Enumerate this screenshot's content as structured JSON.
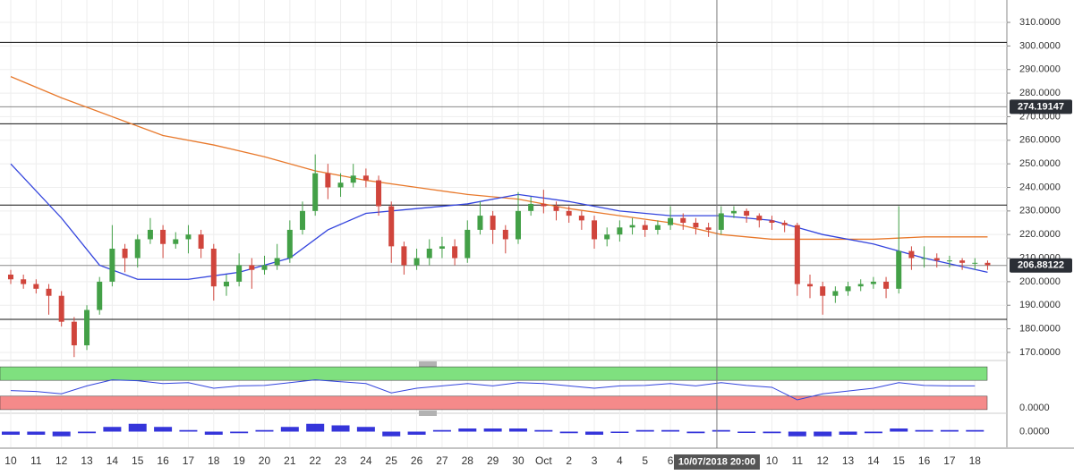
{
  "chart_data": {
    "type": "candlestick",
    "x": [
      0,
      0.5,
      1,
      1.5,
      2,
      2.5,
      3,
      3.5,
      4,
      4.5,
      5,
      5.5,
      6,
      6.5,
      7,
      7.5,
      8,
      8.5,
      9,
      9.5,
      10,
      10.5,
      11,
      11.5,
      12,
      12.5,
      13,
      13.5,
      14,
      14.5,
      15,
      15.5,
      16,
      16.5,
      17,
      17.5,
      18,
      18.5,
      19,
      19.5,
      20,
      20.5,
      21,
      21.5,
      22,
      22.5,
      23,
      23.5,
      24,
      24.5,
      25,
      25.5,
      26,
      26.5,
      27,
      27.5,
      28,
      28.5,
      29,
      29.5,
      30,
      30.5,
      31,
      31.5,
      32,
      32.5,
      33,
      33.5,
      34,
      34.5,
      35,
      35.5,
      36,
      36.5,
      37,
      37.5,
      38,
      38.5
    ],
    "open": [
      203,
      201,
      199,
      197,
      194,
      183,
      173,
      188,
      200,
      214,
      210,
      218,
      222,
      216,
      218,
      220,
      214,
      198,
      200,
      207,
      205,
      207,
      210,
      222,
      230,
      246,
      240,
      242,
      245,
      243,
      232,
      215,
      207,
      210,
      214,
      215,
      210,
      222,
      228,
      222,
      218,
      230,
      233,
      232,
      230,
      228,
      226,
      218,
      220,
      223,
      224,
      222,
      224,
      227,
      225,
      223,
      222,
      229,
      230,
      228,
      226,
      225,
      224,
      199,
      198,
      194,
      196,
      198,
      199,
      200,
      197,
      213,
      210,
      210,
      209,
      209,
      208,
      208
    ],
    "high": [
      205,
      203,
      201,
      199,
      196,
      185,
      190,
      202,
      224,
      216,
      220,
      227,
      224,
      221,
      224,
      222,
      216,
      203,
      212,
      210,
      211,
      216,
      226,
      234,
      254,
      250,
      246,
      250,
      248,
      245,
      234,
      217,
      214,
      218,
      219,
      218,
      226,
      234,
      230,
      224,
      238,
      236,
      239,
      234,
      232,
      230,
      228,
      223,
      226,
      227,
      226,
      226,
      232,
      229,
      227,
      225,
      232,
      232,
      231,
      229,
      228,
      226,
      225,
      203,
      200,
      198,
      200,
      201,
      202,
      202,
      232,
      215,
      215,
      212,
      211,
      210,
      210,
      209
    ],
    "low": [
      199,
      197,
      195,
      186,
      181,
      168,
      171,
      186,
      198,
      204,
      206,
      216,
      210,
      214,
      212,
      210,
      192,
      194,
      198,
      197,
      203,
      205,
      208,
      220,
      228,
      235,
      236,
      240,
      240,
      228,
      208,
      203,
      205,
      207,
      210,
      207,
      208,
      220,
      216,
      212,
      216,
      228,
      229,
      226,
      225,
      222,
      214,
      215,
      217,
      220,
      219,
      220,
      222,
      222,
      220,
      219,
      220,
      227,
      225,
      223,
      222,
      221,
      194,
      193,
      186,
      191,
      194,
      196,
      197,
      193,
      195,
      205,
      206,
      206,
      206,
      205,
      205,
      205
    ],
    "close": [
      201,
      199,
      197,
      194,
      183,
      173,
      188,
      200,
      214,
      210,
      218,
      222,
      216,
      218,
      220,
      214,
      198,
      200,
      207,
      205,
      207,
      210,
      222,
      230,
      246,
      240,
      242,
      245,
      243,
      232,
      215,
      207,
      210,
      214,
      215,
      210,
      222,
      228,
      222,
      218,
      230,
      233,
      232,
      230,
      228,
      226,
      218,
      220,
      223,
      224,
      222,
      224,
      227,
      225,
      223,
      222,
      229,
      230,
      228,
      226,
      225,
      224,
      199,
      198,
      194,
      196,
      198,
      199,
      200,
      197,
      213,
      210,
      210,
      209,
      209,
      208,
      208,
      207
    ],
    "up_color": "#43a047",
    "down_color": "#d0453c",
    "series": [
      {
        "color": "#e8792c",
        "x": [
          0,
          2,
          4,
          6,
          8,
          10,
          12,
          14,
          16,
          18,
          20,
          22,
          24,
          26,
          28,
          30,
          32,
          34,
          36,
          38.5
        ],
        "values": [
          287,
          278,
          270,
          262,
          258,
          253,
          247,
          243,
          240,
          237,
          235,
          231,
          228,
          225,
          220,
          218,
          218,
          218,
          219,
          219
        ]
      },
      {
        "color": "#3344dd",
        "x": [
          0,
          2,
          3.5,
          5,
          7,
          9,
          11,
          12.5,
          14,
          16,
          18,
          20,
          22,
          24,
          26,
          28,
          30,
          31,
          32,
          34,
          36,
          38.5
        ],
        "values": [
          250,
          227,
          207,
          201,
          201,
          204,
          210,
          222,
          229,
          231,
          233,
          237,
          234,
          230,
          228,
          228,
          226,
          223,
          220,
          216,
          210,
          204
        ]
      }
    ],
    "levels": [
      301.5,
      {
        "value": 274.19147,
        "label": "274.19147"
      },
      267,
      232.5,
      {
        "value": 206.88122,
        "label": "206.88122"
      },
      184
    ],
    "xlim": [
      -0.423,
      39.26
    ],
    "ylim": [
      167.7,
      319.5
    ],
    "yticks": [
      {
        "value": 170,
        "label": "170.0000"
      },
      {
        "value": 180,
        "label": "180.0000"
      },
      {
        "value": 190,
        "label": "190.0000"
      },
      {
        "value": 200,
        "label": "200.0000"
      },
      {
        "value": 210,
        "label": "210.0000"
      },
      {
        "value": 220,
        "label": "220.0000"
      },
      {
        "value": 230,
        "label": "230.0000"
      },
      {
        "value": 240,
        "label": "240.0000"
      },
      {
        "value": 250,
        "label": "250.0000"
      },
      {
        "value": 260,
        "label": "260.0000"
      },
      {
        "value": 270,
        "label": "270.0000"
      },
      {
        "value": 280,
        "label": "280.0000"
      },
      {
        "value": 290,
        "label": "290.0000"
      },
      {
        "value": 300,
        "label": "300.0000"
      },
      {
        "value": 310,
        "label": "310.0000"
      }
    ],
    "xticks": [
      {
        "value": 0,
        "label": "10"
      },
      {
        "value": 1,
        "label": "11"
      },
      {
        "value": 2,
        "label": "12"
      },
      {
        "value": 3,
        "label": "13"
      },
      {
        "value": 4,
        "label": "14"
      },
      {
        "value": 5,
        "label": "15"
      },
      {
        "value": 6,
        "label": "16"
      },
      {
        "value": 7,
        "label": "17"
      },
      {
        "value": 8,
        "label": "18"
      },
      {
        "value": 9,
        "label": "19"
      },
      {
        "value": 10,
        "label": "20"
      },
      {
        "value": 11,
        "label": "21"
      },
      {
        "value": 12,
        "label": "22"
      },
      {
        "value": 13,
        "label": "23"
      },
      {
        "value": 14,
        "label": "24"
      },
      {
        "value": 15,
        "label": "25"
      },
      {
        "value": 16,
        "label": "26"
      },
      {
        "value": 17,
        "label": "27"
      },
      {
        "value": 18,
        "label": "28"
      },
      {
        "value": 19,
        "label": "29"
      },
      {
        "value": 20,
        "label": "30"
      },
      {
        "value": 21,
        "label": "Oct"
      },
      {
        "value": 22,
        "label": "2"
      },
      {
        "value": 23,
        "label": "3"
      },
      {
        "value": 24,
        "label": "4"
      },
      {
        "value": 25,
        "label": "5"
      },
      {
        "value": 26,
        "label": "6"
      },
      {
        "value": 30,
        "label": "10"
      },
      {
        "value": 31,
        "label": "11"
      },
      {
        "value": 32,
        "label": "12"
      },
      {
        "value": 33,
        "label": "13"
      },
      {
        "value": 34,
        "label": "14"
      },
      {
        "value": 35,
        "label": "15"
      },
      {
        "value": 36,
        "label": "16"
      },
      {
        "value": 37,
        "label": "17"
      },
      {
        "value": 38,
        "label": "18"
      }
    ],
    "grid": true,
    "crosshair": {
      "x": 27.83,
      "label": "10/07/2018 20:00"
    },
    "rsi": {
      "color": "#3344dd",
      "ylim": [
        0,
        100
      ],
      "upper_band": [
        67,
        96
      ],
      "lower_band": [
        4,
        33
      ],
      "yticks": [
        {
          "value": 0,
          "label": "0.0000"
        }
      ],
      "x": [
        0,
        1,
        2,
        3,
        4,
        5,
        6,
        7,
        8,
        9,
        10,
        11,
        12,
        13,
        14,
        15,
        16,
        17,
        18,
        19,
        20,
        21,
        22,
        23,
        24,
        25,
        26,
        27,
        28,
        29,
        30,
        31,
        32,
        33,
        34,
        35,
        36,
        37,
        38
      ],
      "values": [
        45,
        43,
        38,
        55,
        68,
        66,
        60,
        62,
        50,
        55,
        56,
        62,
        68,
        64,
        60,
        40,
        50,
        55,
        60,
        55,
        62,
        60,
        55,
        50,
        55,
        56,
        60,
        55,
        62,
        56,
        52,
        25,
        38,
        44,
        50,
        62,
        56,
        55,
        55
      ]
    },
    "histogram": {
      "color": "#1f1fd6",
      "ylim": [
        -10,
        10
      ],
      "yticks": [
        {
          "value": 0,
          "label": "0.0000"
        }
      ],
      "x": [
        0,
        1,
        2,
        3,
        4,
        5,
        6,
        7,
        8,
        9,
        10,
        11,
        12,
        13,
        14,
        15,
        16,
        17,
        18,
        19,
        20,
        21,
        22,
        23,
        24,
        25,
        26,
        27,
        28,
        29,
        30,
        31,
        32,
        33,
        34,
        35,
        36,
        37,
        38
      ],
      "values": [
        -2,
        -2,
        -3,
        -1,
        3,
        5,
        3,
        1,
        -2,
        -1,
        1,
        3,
        5,
        4,
        3,
        -3,
        -2,
        1,
        2,
        2,
        2,
        1,
        -1,
        -2,
        0,
        1,
        1,
        -1,
        1,
        0,
        -1,
        -3,
        -3,
        -2,
        -1,
        2,
        1,
        1,
        1
      ]
    }
  }
}
